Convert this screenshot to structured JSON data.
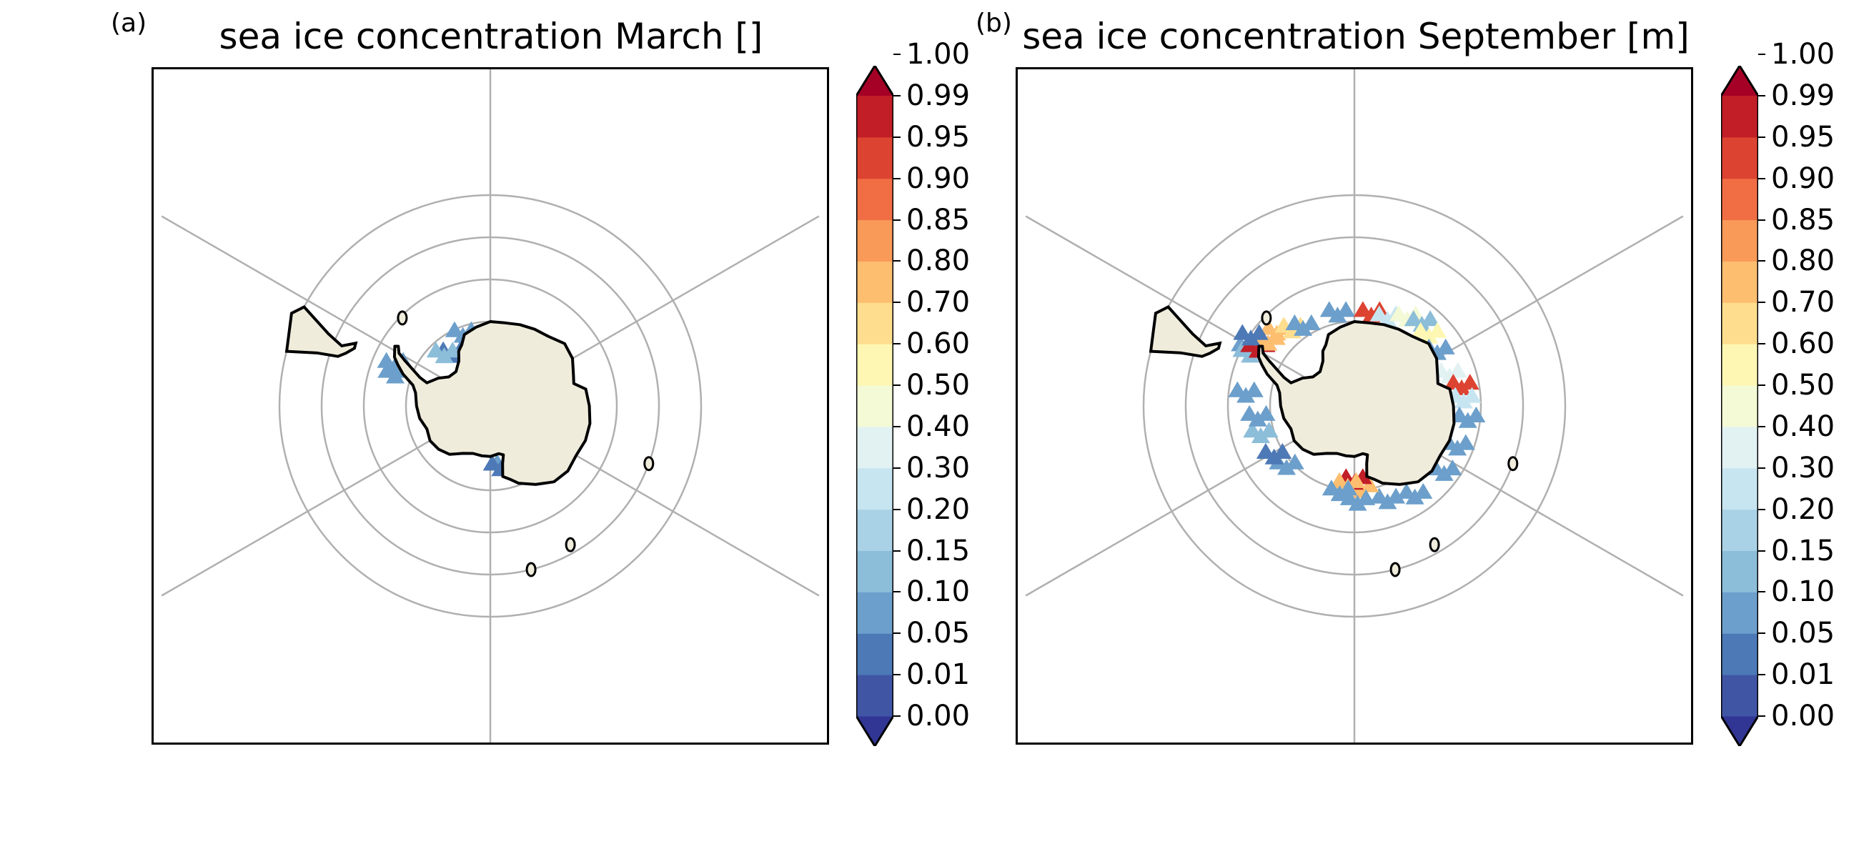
{
  "figure": {
    "panels": [
      {
        "id": "a",
        "letter": "(a)",
        "title": "sea ice concentration March []"
      },
      {
        "id": "b",
        "letter": "(b)",
        "title": "sea ice concentration September [m]"
      }
    ]
  },
  "colors": {
    "land": "#efecdc",
    "coast": "#000000",
    "grid": "#b0b0b0",
    "levels": [
      "#313695",
      "#4155a5",
      "#4d79b6",
      "#6c9fcb",
      "#8cbdd9",
      "#a9d2e6",
      "#c7e5f0",
      "#e2f2f3",
      "#f4f9d6",
      "#fef7b3",
      "#fede8e",
      "#fdbe70",
      "#f99a59",
      "#f16e45",
      "#dd4331",
      "#c21e27",
      "#a50026"
    ]
  },
  "chart_data": {
    "type": "map",
    "projection": "south-polar-stereographic",
    "colorbar": {
      "ticks": [
        "0.00",
        "0.01",
        "0.05",
        "0.10",
        "0.15",
        "0.20",
        "0.30",
        "0.40",
        "0.50",
        "0.60",
        "0.70",
        "0.80",
        "0.85",
        "0.90",
        "0.95",
        "0.99",
        "1.00"
      ],
      "extend": "both"
    },
    "panels": [
      {
        "panel": "a",
        "month": "March",
        "ice_patches": [
          {
            "lon": -70,
            "lat": -66,
            "value": 0.05
          },
          {
            "lon": -65,
            "lat": -65,
            "value": 0.08
          },
          {
            "lon": -20,
            "lat": -71,
            "value": 0.08
          },
          {
            "lon": -35,
            "lat": -74,
            "value": 0.03
          },
          {
            "lon": -40,
            "lat": -73,
            "value": 0.1
          },
          {
            "lon": 165,
            "lat": -76,
            "value": 0.05
          },
          {
            "lon": 170,
            "lat": -76,
            "value": 0.03
          }
        ]
      },
      {
        "panel": "b",
        "month": "September",
        "ice_patches": [
          {
            "lon": -60,
            "lat": -61,
            "value": 0.08
          },
          {
            "lon": -62,
            "lat": -62,
            "value": 0.12
          },
          {
            "lon": -58,
            "lat": -63,
            "value": 0.97
          },
          {
            "lon": -52,
            "lat": -64,
            "value": 0.75
          },
          {
            "lon": -45,
            "lat": -64,
            "value": 0.72
          },
          {
            "lon": -38,
            "lat": -66,
            "value": 0.6
          },
          {
            "lon": -32,
            "lat": -67,
            "value": 0.08
          },
          {
            "lon": -55,
            "lat": -60,
            "value": 0.03
          },
          {
            "lon": -10,
            "lat": -67,
            "value": 0.05
          },
          {
            "lon": 10,
            "lat": -67,
            "value": 0.93
          },
          {
            "lon": 20,
            "lat": -67,
            "value": 0.25
          },
          {
            "lon": 30,
            "lat": -65,
            "value": 0.45
          },
          {
            "lon": 38,
            "lat": -64,
            "value": 0.1
          },
          {
            "lon": 45,
            "lat": -65,
            "value": 0.55
          },
          {
            "lon": 55,
            "lat": -66,
            "value": 0.05
          },
          {
            "lon": 70,
            "lat": -66,
            "value": 0.3
          },
          {
            "lon": 78,
            "lat": -64,
            "value": 0.9
          },
          {
            "lon": 85,
            "lat": -64,
            "value": 0.25
          },
          {
            "lon": 95,
            "lat": -63,
            "value": 0.05
          },
          {
            "lon": 110,
            "lat": -64,
            "value": 0.08
          },
          {
            "lon": 125,
            "lat": -64,
            "value": 0.05
          },
          {
            "lon": 145,
            "lat": -65,
            "value": 0.08
          },
          {
            "lon": 160,
            "lat": -67,
            "value": 0.05
          },
          {
            "lon": 175,
            "lat": -71,
            "value": 0.78
          },
          {
            "lon": 180,
            "lat": -73,
            "value": 0.97
          },
          {
            "lon": -175,
            "lat": -72,
            "value": 0.72
          },
          {
            "lon": 178,
            "lat": -68,
            "value": 0.05
          },
          {
            "lon": -170,
            "lat": -70,
            "value": 0.08
          },
          {
            "lon": -130,
            "lat": -69,
            "value": 0.05
          },
          {
            "lon": -120,
            "lat": -68,
            "value": 0.03
          },
          {
            "lon": -105,
            "lat": -67,
            "value": 0.1
          },
          {
            "lon": -95,
            "lat": -67,
            "value": 0.05
          },
          {
            "lon": -82,
            "lat": -64,
            "value": 0.05
          }
        ]
      }
    ]
  }
}
